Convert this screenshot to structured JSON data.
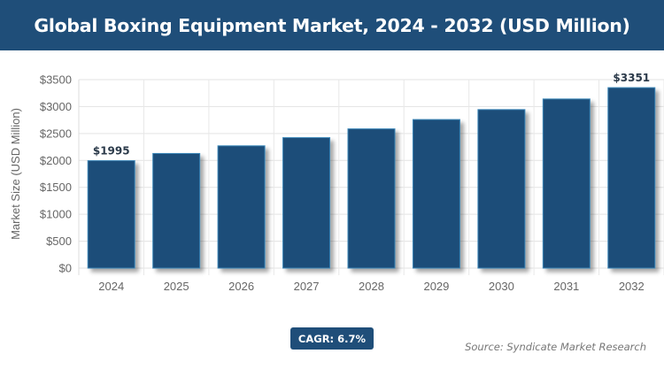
{
  "chart_data": {
    "type": "bar",
    "title": "Global Boxing Equipment Market, 2024 - 2032 (USD Million)",
    "ylabel": "Market Size (USD Million)",
    "xlabel": "",
    "categories": [
      "2024",
      "2025",
      "2026",
      "2027",
      "2028",
      "2029",
      "2030",
      "2031",
      "2032"
    ],
    "values": [
      1995,
      2129,
      2271,
      2423,
      2586,
      2759,
      2944,
      3141,
      3351
    ],
    "data_labels": {
      "0": "$1995",
      "8": "$3351"
    },
    "ylim": [
      0,
      3500
    ],
    "yticks": [
      "$0",
      "$500",
      "$1000",
      "$1500",
      "$2000",
      "$2500",
      "$3000",
      "$3500"
    ],
    "grid": true,
    "bar_color": "#1f4e79",
    "bar_border_color": "#3a86b8"
  },
  "cagr_label": "CAGR: 6.7%",
  "source": "Source: Syndicate Market Research",
  "colors": {
    "header": "#1f4e79",
    "badge": "#1f4e79"
  }
}
